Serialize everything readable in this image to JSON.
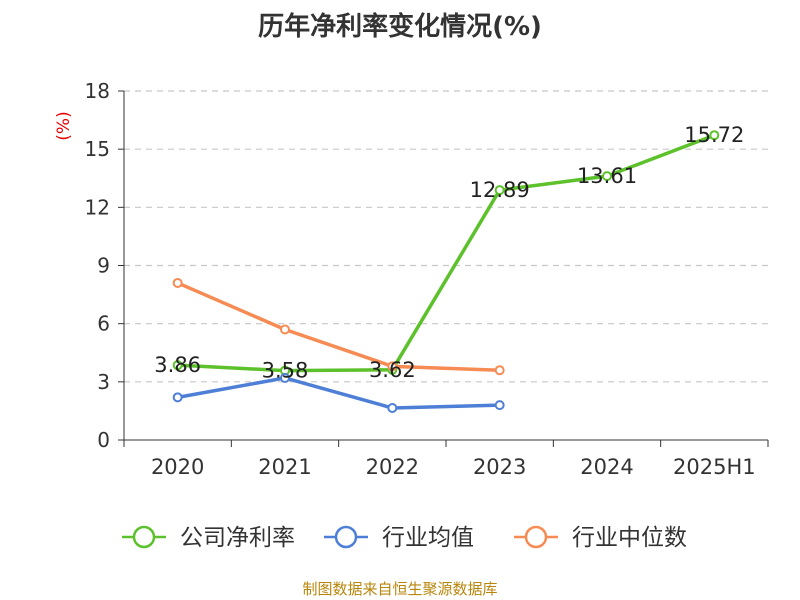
{
  "title": "历年净利率变化情况(%)",
  "source": "制图数据来自恒生聚源数据库",
  "chart_data": {
    "type": "line",
    "title": "历年净利率变化情况(%)",
    "ylabel": "(%)",
    "xlabel": "",
    "categories": [
      "2020",
      "2021",
      "2022",
      "2023",
      "2024",
      "2025H1"
    ],
    "ylim": [
      0,
      18
    ],
    "yticks": [
      0,
      3,
      6,
      9,
      12,
      15,
      18
    ],
    "grid": true,
    "legend_position": "bottom",
    "series": [
      {
        "name": "公司净利率",
        "color": "#5cc12b",
        "show_labels": true,
        "values": [
          3.86,
          3.58,
          3.62,
          12.89,
          13.61,
          15.72
        ]
      },
      {
        "name": "行业均值",
        "color": "#4e7fd6",
        "show_labels": false,
        "values": [
          2.2,
          3.2,
          1.65,
          1.8,
          null,
          null
        ]
      },
      {
        "name": "行业中位数",
        "color": "#f78b54",
        "show_labels": false,
        "values": [
          8.1,
          5.7,
          3.8,
          3.6,
          null,
          null
        ]
      }
    ]
  }
}
